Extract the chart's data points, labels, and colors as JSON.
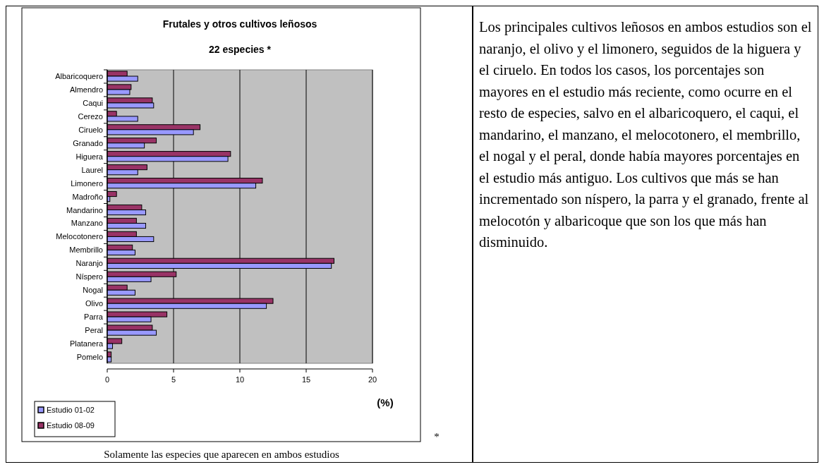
{
  "chart_data": {
    "type": "bar",
    "orientation": "horizontal",
    "title": "Frutales y otros cultivos leñosos",
    "subtitle": "22 especies *",
    "xlabel": "(%)",
    "categories": [
      "Albaricoquero",
      "Almendro",
      "Caqui",
      "Cerezo",
      "Ciruelo",
      "Granado",
      "Higuera",
      "Laurel",
      "Limonero",
      "Madroño",
      "Mandarino",
      "Manzano",
      "Melocotonero",
      "Membrillo",
      "Naranjo",
      "Níspero",
      "Nogal",
      "Olivo",
      "Parra",
      "Peral",
      "Platanera",
      "Pomelo"
    ],
    "series": [
      {
        "name": "Estudio 08-09",
        "color": "#993366",
        "values": [
          1.5,
          1.8,
          3.4,
          0.7,
          7.0,
          3.7,
          9.3,
          3.0,
          11.7,
          0.7,
          2.6,
          2.2,
          2.2,
          1.9,
          17.1,
          5.2,
          1.5,
          12.5,
          4.5,
          3.4,
          1.1,
          0.3
        ]
      },
      {
        "name": "Estudio 01-02",
        "color": "#9999ff",
        "values": [
          2.3,
          1.7,
          3.5,
          2.3,
          6.5,
          2.8,
          9.1,
          2.3,
          11.2,
          0.2,
          2.9,
          2.9,
          3.5,
          2.1,
          16.9,
          3.3,
          2.1,
          12.0,
          3.3,
          3.7,
          0.4,
          0.3
        ]
      }
    ],
    "xlim": [
      0,
      20
    ],
    "xticks": [
      0,
      5,
      10,
      15,
      20
    ],
    "grid": "x",
    "legend": "bottom left",
    "annotations": [
      "Solamente las especies que aparecen en ambos estudios",
      "*",
      "Los principales cultivos leñosos en ambos estudios son el naranjo, el olivo y el limonero, seguidos de la higuera y el ciruelo. En todos los casos, los porcentajes son mayores en el estudio más reciente, como ocurre en el resto de especies, salvo en el albaricoquero, el caqui, el mandarino, el manzano, el melocotonero, el membrillo, el nogal y el peral, donde había mayores porcentajes en el estudio más antiguo. Los cultivos que más se han incrementado son níspero, la parra y el granado, frente al melocotón y albaricoque que son los que más han disminuido."
    ]
  }
}
